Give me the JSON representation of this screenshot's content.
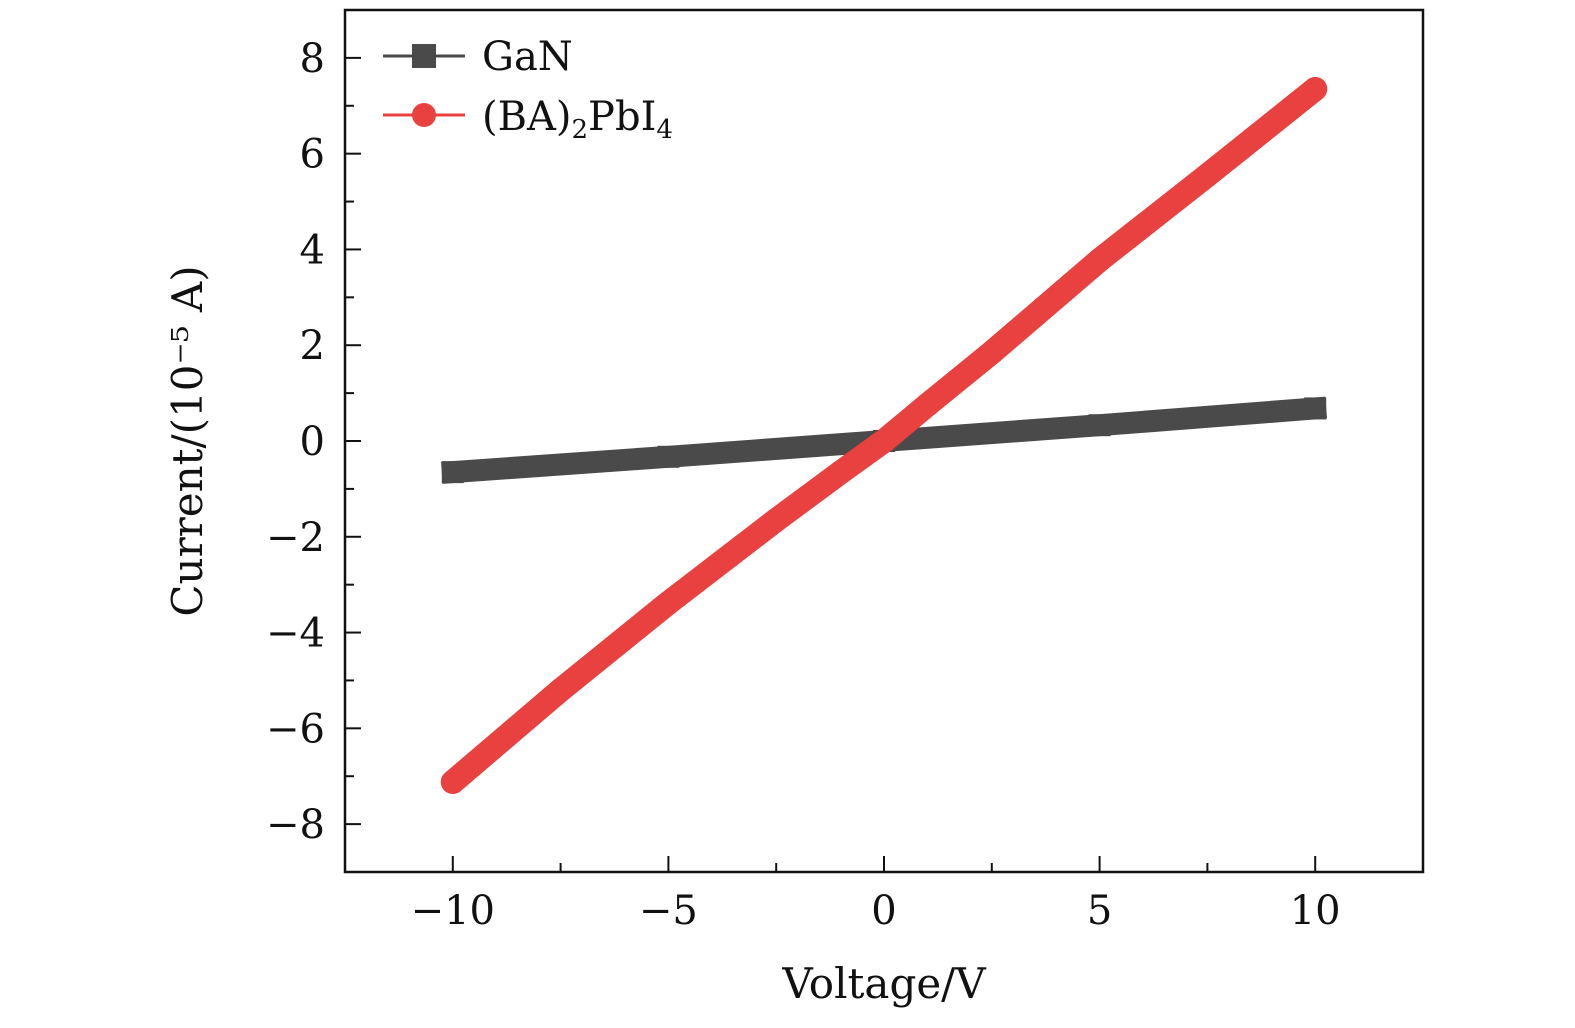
{
  "chart_data": {
    "type": "line",
    "title": "",
    "xlabel": "Voltage/V",
    "ylabel": "Current/(10⁻⁵ A)",
    "xlim": [
      -12.5,
      12.5
    ],
    "ylim": [
      -9,
      9
    ],
    "xticks": [
      -10,
      -5,
      0,
      5,
      10
    ],
    "xtick_labels": [
      "−10",
      "−5",
      "0",
      "5",
      "10"
    ],
    "xminor": [
      -7.5,
      -2.5,
      2.5,
      7.5
    ],
    "yticks": [
      -8,
      -6,
      -4,
      -2,
      0,
      2,
      4,
      6,
      8
    ],
    "ytick_labels": [
      "−8",
      "−6",
      "−4",
      "−2",
      "0",
      "2",
      "4",
      "6",
      "8"
    ],
    "yminor": [
      -7,
      -5,
      -3,
      -1,
      1,
      3,
      5,
      7
    ],
    "grid": false,
    "legend_position": "top-left",
    "series": [
      {
        "name": "GaN",
        "color": "#4a4a4a",
        "marker": "square",
        "x": [
          -10,
          -5,
          0,
          5,
          10
        ],
        "y": [
          -0.65,
          -0.33,
          0.0,
          0.33,
          0.68
        ]
      },
      {
        "name_parts": {
          "open": "(BA)",
          "sub1": "2",
          "mid": "PbI",
          "sub2": "4"
        },
        "color": "#e94040",
        "marker": "circle",
        "x": [
          -10,
          -7.5,
          -5,
          -2.5,
          -1,
          0,
          1,
          2.5,
          5,
          7.5,
          10
        ],
        "y": [
          -7.12,
          -5.2,
          -3.38,
          -1.65,
          -0.65,
          0.0,
          0.75,
          1.85,
          3.78,
          5.55,
          7.35
        ]
      }
    ]
  }
}
